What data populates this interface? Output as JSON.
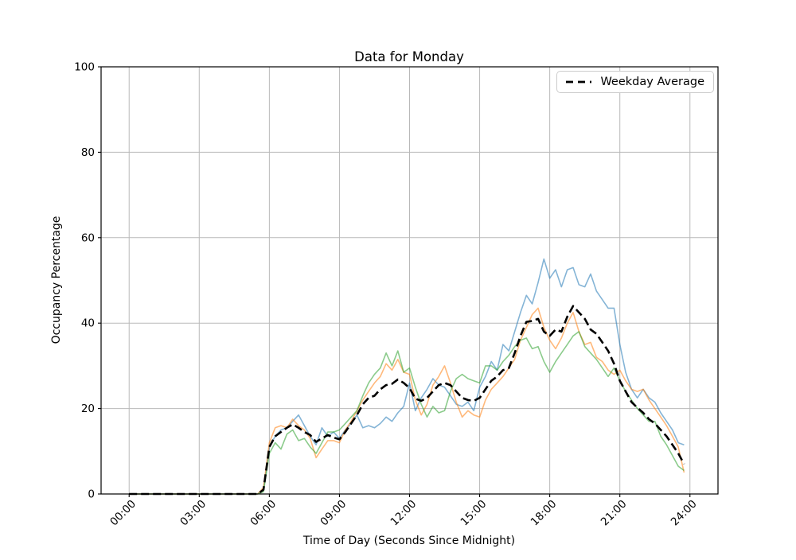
{
  "chart_data": {
    "type": "line",
    "title": "Data for Monday",
    "xlabel": "Time of Day (Seconds Since Midnight)",
    "ylabel": "Occupancy Percentage",
    "ylim": [
      0,
      100
    ],
    "yticks": [
      0,
      20,
      40,
      60,
      80,
      100
    ],
    "xtick_labels": [
      "00:00",
      "03:00",
      "06:00",
      "09:00",
      "12:00",
      "15:00",
      "18:00",
      "21:00",
      "24:00"
    ],
    "xtick_hours": [
      0,
      3,
      6,
      9,
      12,
      15,
      18,
      21,
      24
    ],
    "grid": true,
    "grid_color": "#b9b9b9",
    "background_color": "#ffffff",
    "legend": {
      "label": "Weekday Average",
      "position": "upper right"
    },
    "x_start": "00:00",
    "x_step_minutes": 15,
    "series": [
      {
        "name": "line-blue",
        "label": "",
        "color": "#1f77b4",
        "alpha": 0.55,
        "style": "solid",
        "values": [
          0,
          0,
          0,
          0,
          0,
          0,
          0,
          0,
          0,
          0,
          0,
          0,
          0,
          0,
          0,
          0,
          0,
          0,
          0,
          0,
          0,
          0,
          0,
          1,
          11,
          13.5,
          15,
          15.5,
          17,
          18.5,
          16,
          13.5,
          11.5,
          15.5,
          13.5,
          14.5,
          13,
          15,
          16.5,
          18.5,
          15.5,
          16,
          15.5,
          16.5,
          18,
          17,
          19,
          20.5,
          26,
          19.5,
          22.5,
          24.5,
          27,
          25.5,
          25,
          23,
          21,
          20.5,
          21.5,
          19.5,
          25,
          27.5,
          31,
          29,
          35,
          33.5,
          38,
          42.5,
          46.5,
          44.5,
          49.5,
          55,
          50.5,
          52.5,
          48.5,
          52.5,
          53,
          49,
          48.5,
          51.5,
          47.5,
          45.5,
          43.5,
          43.5,
          35,
          28.5,
          24.5,
          22.5,
          24.5,
          22.5,
          21.5,
          19,
          17,
          15,
          12,
          11.5
        ]
      },
      {
        "name": "line-orange",
        "label": "",
        "color": "#ff7f0e",
        "alpha": 0.55,
        "style": "solid",
        "values": [
          0,
          0,
          0,
          0,
          0,
          0,
          0,
          0,
          0,
          0,
          0,
          0,
          0,
          0,
          0,
          0,
          0,
          0,
          0,
          0,
          0,
          0,
          0,
          1.5,
          12,
          15.5,
          16,
          15.5,
          17.5,
          16,
          15,
          13,
          8.5,
          10.5,
          12.5,
          12.5,
          12,
          15,
          17,
          19.5,
          22,
          24,
          26,
          27.5,
          30.5,
          29,
          31.5,
          28.5,
          28,
          22,
          18.5,
          21,
          25.5,
          27.5,
          30,
          26,
          21.5,
          18,
          19.5,
          18.5,
          18,
          22,
          24.5,
          26,
          27.5,
          29.5,
          31.5,
          36,
          39,
          42,
          43.5,
          39,
          36,
          34,
          36.5,
          40,
          42.5,
          38,
          35,
          35.5,
          32,
          31,
          29,
          28,
          29,
          26.5,
          24.5,
          24,
          24.5,
          22,
          20,
          18,
          16,
          13.5,
          11,
          5
        ]
      },
      {
        "name": "line-green",
        "label": "",
        "color": "#2ca02c",
        "alpha": 0.55,
        "style": "solid",
        "values": [
          0,
          0,
          0,
          0,
          0,
          0,
          0,
          0,
          0,
          0,
          0,
          0,
          0,
          0,
          0,
          0,
          0,
          0,
          0,
          0,
          0,
          0,
          0,
          0.5,
          9.5,
          12,
          10.5,
          14,
          15,
          12.5,
          13,
          11,
          9.5,
          12,
          14.5,
          14.5,
          15,
          16.5,
          18,
          19.5,
          23,
          26,
          28,
          29.5,
          33,
          30,
          33.5,
          28.5,
          29.5,
          25,
          21,
          18,
          20.5,
          19,
          19.5,
          24,
          27,
          28,
          27,
          26.5,
          26,
          30,
          30,
          29,
          31,
          32.5,
          34.5,
          36,
          36.5,
          34,
          34.5,
          31,
          28.5,
          31,
          33,
          35,
          37,
          38,
          34.5,
          33,
          31.5,
          29.5,
          27.5,
          29.5,
          26.5,
          24,
          22,
          20,
          18.5,
          17,
          17,
          13.5,
          11.5,
          9,
          6.5,
          5.5
        ]
      },
      {
        "name": "weekday-average",
        "label": "Weekday Average",
        "color": "#000000",
        "alpha": 1,
        "style": "dashed",
        "values": [
          0,
          0,
          0,
          0,
          0,
          0,
          0,
          0,
          0,
          0,
          0,
          0,
          0,
          0,
          0,
          0,
          0,
          0,
          0,
          0,
          0,
          0,
          0,
          1,
          11,
          13.5,
          14.5,
          15.5,
          16.3,
          15.5,
          14.5,
          13.8,
          12.2,
          13,
          13.8,
          13.2,
          12.8,
          14.5,
          16.5,
          18.5,
          21,
          22.5,
          23,
          24.5,
          25.5,
          25.8,
          26.8,
          26,
          24.8,
          22.3,
          21.8,
          22.5,
          24,
          25.5,
          26,
          25.5,
          24,
          22.5,
          22,
          21.8,
          22.5,
          24.5,
          26.5,
          27.5,
          29,
          29.5,
          33,
          37,
          40.3,
          40.5,
          41,
          38,
          37,
          38.5,
          38,
          41.5,
          44,
          42.5,
          41,
          38.5,
          37.5,
          35.5,
          33.5,
          30.5,
          26.5,
          24,
          21.5,
          20.2,
          19,
          17.5,
          16.5,
          15,
          13.5,
          11.5,
          9.5,
          7
        ]
      }
    ]
  }
}
